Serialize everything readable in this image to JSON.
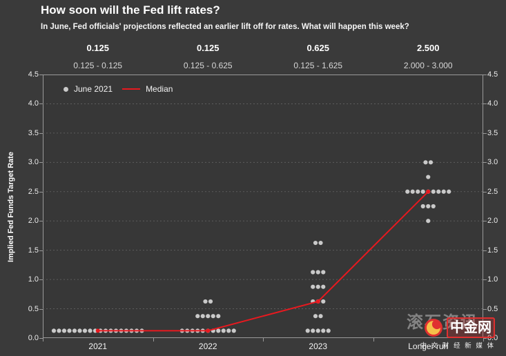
{
  "page": {
    "title": "How soon will the Fed lift rates?",
    "subtitle": "In June, Fed officials' projections reflected an earlier lift off for rates. What will happen this week?"
  },
  "header_stats": {
    "medians": [
      "0.125",
      "0.125",
      "0.625",
      "2.500"
    ],
    "ranges": [
      "0.125 - 0.125",
      "0.125 - 0.625",
      "0.125 - 1.625",
      "2.000 - 3.000"
    ]
  },
  "legend": {
    "dots_label": "June 2021",
    "median_label": "Median"
  },
  "chart_data": {
    "type": "scatter",
    "title": "How soon will the Fed lift rates?",
    "ylabel": "Implied Fed Funds Target Rate",
    "ylim": [
      0,
      4.5
    ],
    "ytick_step": 0.5,
    "grid": true,
    "legend_position": "top-left",
    "categories": [
      "2021",
      "2022",
      "2023",
      "Longer run"
    ],
    "dot_series": {
      "name": "June 2021",
      "color": "#c9c9c9",
      "points": [
        {
          "category": "2021",
          "distribution": [
            {
              "rate": 0.125,
              "count": 18
            }
          ]
        },
        {
          "category": "2022",
          "distribution": [
            {
              "rate": 0.125,
              "count": 11
            },
            {
              "rate": 0.375,
              "count": 5
            },
            {
              "rate": 0.625,
              "count": 2
            }
          ]
        },
        {
          "category": "2023",
          "distribution": [
            {
              "rate": 0.125,
              "count": 5
            },
            {
              "rate": 0.375,
              "count": 2
            },
            {
              "rate": 0.625,
              "count": 3
            },
            {
              "rate": 0.875,
              "count": 3
            },
            {
              "rate": 1.125,
              "count": 3
            },
            {
              "rate": 1.625,
              "count": 2
            }
          ]
        },
        {
          "category": "Longer run",
          "distribution": [
            {
              "rate": 2.0,
              "count": 1
            },
            {
              "rate": 2.25,
              "count": 3
            },
            {
              "rate": 2.5,
              "count": 9
            },
            {
              "rate": 2.75,
              "count": 1
            },
            {
              "rate": 3.0,
              "count": 2
            }
          ]
        }
      ]
    },
    "median_series": {
      "name": "Median",
      "color": "#e8191f",
      "values": [
        0.125,
        0.125,
        0.625,
        2.5
      ]
    }
  },
  "watermark": {
    "brand": "中金网",
    "tagline": "中 文 财 经 新 媒 体",
    "overlay_text": "滚石资讯"
  },
  "colors": {
    "background": "#3a3a3a",
    "plot_fill": "#373737",
    "plot_border": "#9a9a9a",
    "gridline": "#5d5d5d",
    "dot": "#c9c9c9",
    "median_red": "#e8191f",
    "text": "#ffffff"
  }
}
